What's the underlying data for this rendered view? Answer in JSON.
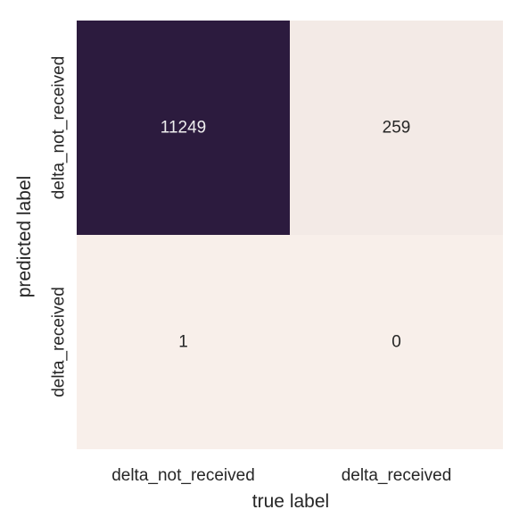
{
  "chart_data": {
    "type": "heatmap",
    "title": "",
    "xlabel": "true label",
    "ylabel": "predicted label",
    "x_categories": [
      "delta_not_received",
      "delta_received"
    ],
    "y_categories": [
      "delta_not_received",
      "delta_received"
    ],
    "values": [
      [
        11249,
        259
      ],
      [
        1,
        0
      ]
    ],
    "colors": {
      "max": "#2c1b3e",
      "min": "#f8efea",
      "text_on_dark": "#eeeeee",
      "text_on_light": "#262626"
    },
    "colorbar": false,
    "grid": false
  }
}
